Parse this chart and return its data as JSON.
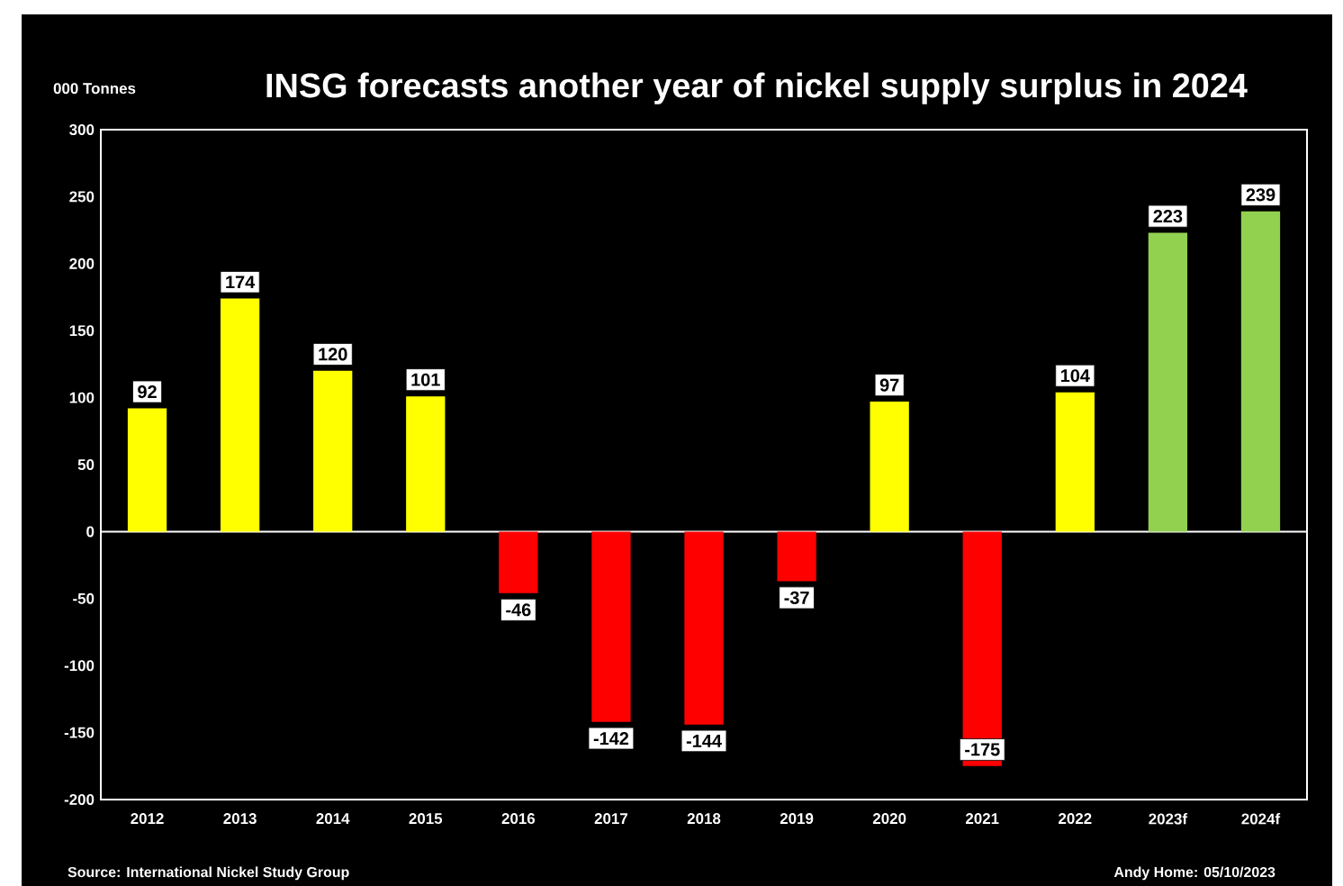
{
  "chart_data": {
    "type": "bar",
    "title": "INSG forecasts another year of nickel supply surplus in 2024",
    "ylabel": "000 Tonnes",
    "categories": [
      "2012",
      "2013",
      "2014",
      "2015",
      "2016",
      "2017",
      "2018",
      "2019",
      "2020",
      "2021",
      "2022",
      "2023f",
      "2024f"
    ],
    "values": [
      92,
      174,
      120,
      101,
      -46,
      -142,
      -144,
      -37,
      97,
      -175,
      104,
      223,
      239
    ],
    "colors": [
      "#ffff00",
      "#ffff00",
      "#ffff00",
      "#ffff00",
      "#ff0000",
      "#ff0000",
      "#ff0000",
      "#ff0000",
      "#ffff00",
      "#ff0000",
      "#ffff00",
      "#92d050",
      "#92d050"
    ],
    "ylim": [
      -200,
      300
    ],
    "yticks": [
      -200,
      -150,
      -100,
      -50,
      0,
      50,
      100,
      150,
      200,
      250,
      300
    ],
    "data_labels": true,
    "annotations": [
      "Source: International Nickel Study Group",
      "Andy Home: 05/10/2023"
    ]
  }
}
